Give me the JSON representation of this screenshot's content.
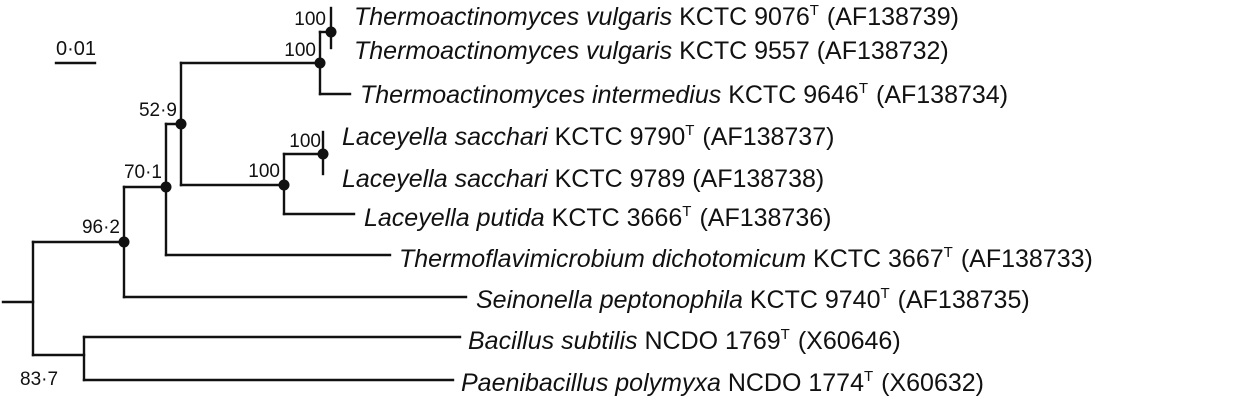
{
  "scale_bar": {
    "label": "0·01"
  },
  "taxa": [
    {
      "genus_species": "Thermoactinomyces vulgaris",
      "strain": "KCTC 9076",
      "type_strain": true,
      "accession": "(AF138739)"
    },
    {
      "genus_species": "Thermoactinomyces vulgaris",
      "strain": "KCTC 9557",
      "type_strain": false,
      "accession": "(AF138732)"
    },
    {
      "genus_species": "Thermoactinomyces intermedius",
      "strain": "KCTC 9646",
      "type_strain": true,
      "accession": "(AF138734)"
    },
    {
      "genus_species": "Laceyella sacchari",
      "strain": "KCTC 9790",
      "type_strain": true,
      "accession": "(AF138737)"
    },
    {
      "genus_species": "Laceyella sacchari",
      "strain": "KCTC 9789",
      "type_strain": false,
      "accession": "(AF138738)"
    },
    {
      "genus_species": "Laceyella putida",
      "strain": "KCTC 3666",
      "type_strain": true,
      "accession": "(AF138736)"
    },
    {
      "genus_species": "Thermoflavimicrobium dichotomicum",
      "strain": "KCTC 3667",
      "type_strain": true,
      "accession": "(AF138733)"
    },
    {
      "genus_species": "Seinonella peptonophila",
      "strain": "KCTC 9740",
      "type_strain": true,
      "accession": "(AF138735)"
    },
    {
      "genus_species": "Bacillus subtilis",
      "strain": "NCDO 1769",
      "type_strain": true,
      "accession": "(X60646)"
    },
    {
      "genus_species": "Paenibacillus polymyxa",
      "strain": "NCDO 1774",
      "type_strain": true,
      "accession": "(X60632)"
    }
  ],
  "type_strain_marker": "T",
  "bootstrap": {
    "thermoactinomyces_vulgaris_pair": "100",
    "thermoactinomyces_vulgaris_group": "100",
    "thermoactinomyces_laceyella": "52·9",
    "laceyella_sacchari_pair": "100",
    "laceyella_group": "100",
    "with_thermoflavimicrobium": "70·1",
    "with_seinonella": "96·2",
    "bacillus_paenibacillus": "83·7"
  }
}
